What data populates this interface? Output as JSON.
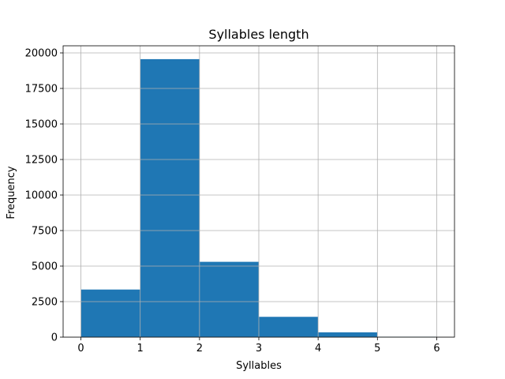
{
  "chart_data": {
    "type": "bar",
    "title": "Syllables length",
    "xlabel": "Syllables",
    "ylabel": "Frequency",
    "bins": [
      {
        "x0": 0,
        "x1": 1,
        "value": 3350
      },
      {
        "x0": 1,
        "x1": 2,
        "value": 19560
      },
      {
        "x0": 2,
        "x1": 3,
        "value": 5300
      },
      {
        "x0": 3,
        "x1": 4,
        "value": 1430
      },
      {
        "x0": 4,
        "x1": 5,
        "value": 340
      },
      {
        "x0": 5,
        "x1": 6,
        "value": 30
      }
    ],
    "xlim": [
      -0.3,
      6.3
    ],
    "ylim": [
      0,
      20500
    ],
    "xticks": [
      0,
      1,
      2,
      3,
      4,
      5,
      6
    ],
    "xtick_labels": [
      "0",
      "1",
      "2",
      "3",
      "4",
      "5",
      "6"
    ],
    "yticks": [
      0,
      2500,
      5000,
      7500,
      10000,
      12500,
      15000,
      17500,
      20000
    ],
    "ytick_labels": [
      "0",
      "2500",
      "5000",
      "7500",
      "10000",
      "12500",
      "15000",
      "17500",
      "20000"
    ],
    "grid": true,
    "bar_color": "#1f77b4",
    "grid_color": "#b0b0b0"
  }
}
